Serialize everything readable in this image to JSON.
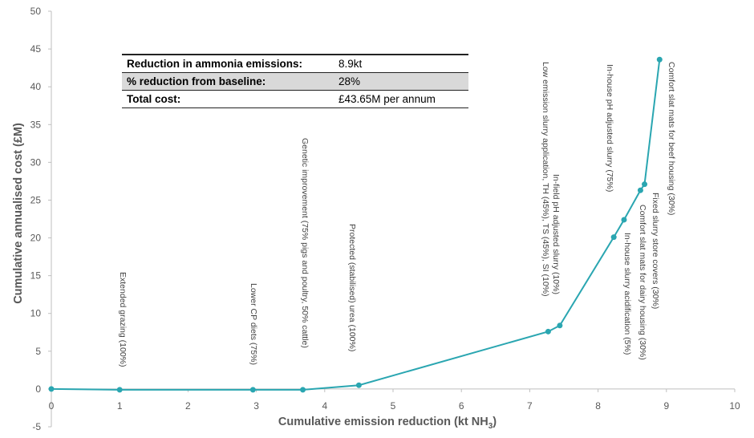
{
  "chart_data": {
    "type": "line",
    "xlabel": "Cumulative emission reduction (kt NH",
    "xlabel_sub": "3",
    "xlabel_end": ")",
    "ylabel": "Cumulative annualised cost (£M)",
    "xlim": [
      0,
      10
    ],
    "ylim": [
      -5,
      50
    ],
    "xticks": [
      0,
      1,
      2,
      3,
      4,
      5,
      6,
      7,
      8,
      9,
      10
    ],
    "yticks": [
      -5,
      0,
      5,
      10,
      15,
      20,
      25,
      30,
      35,
      40,
      45,
      50
    ],
    "grid": false,
    "color": "#2aa6b1",
    "series": [
      {
        "x": [
          0,
          1.0,
          2.95,
          3.68,
          4.5,
          7.27,
          7.44,
          8.23,
          8.38,
          8.62,
          8.68,
          8.9
        ],
        "y": [
          0,
          -0.1,
          -0.1,
          -0.1,
          0.5,
          7.6,
          8.4,
          20.1,
          22.4,
          26.3,
          27.1,
          43.6
        ]
      }
    ],
    "annotations": [
      {
        "text": "Extended grazing (100%)"
      },
      {
        "text": "Lower CP diets (75%)"
      },
      {
        "text": "Genetic improvement (75% pigs and poultry, 50% cattle)"
      },
      {
        "text": "Protected (stabilised) urea (100%)"
      },
      {
        "text": "Low emission slurry application, TH (45%), TS (45%), SI (10%)"
      },
      {
        "text": "In-field pH adjusted slurry (10%)"
      },
      {
        "text": "In-house pH adjusted slurry (75%)"
      },
      {
        "text": "In-house slurry acidification (5%)"
      },
      {
        "text": "Comfort slat mats for dairy housing (30%)"
      },
      {
        "text": "Fixed slurry store covers (30%)"
      },
      {
        "text": "Comfort slat mats for beef housing (30%)"
      }
    ]
  },
  "summary_table": [
    {
      "label": "Reduction in ammonia emissions:",
      "value": "8.9kt"
    },
    {
      "label": "% reduction from baseline:",
      "value": "28%"
    },
    {
      "label": "Total cost:",
      "value": "£43.65M per annum"
    }
  ]
}
